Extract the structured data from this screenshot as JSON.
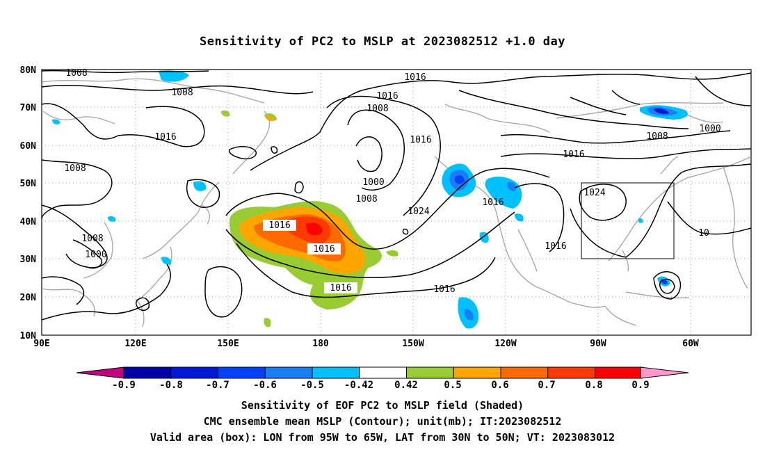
{
  "title": "Sensitivity of PC2 to MSLP at 2023082512 +1.0 day",
  "lat_labels": [
    "80N",
    "70N",
    "60N",
    "50N",
    "40N",
    "30N",
    "20N",
    "10N"
  ],
  "lon_labels": [
    "90E",
    "120E",
    "150E",
    "180",
    "150W",
    "120W",
    "90W",
    "60W"
  ],
  "colorbar": {
    "labels": [
      "-0.9",
      "-0.8",
      "-0.7",
      "-0.6",
      "-0.5",
      "-0.42",
      "0.42",
      "0.5",
      "0.6",
      "0.7",
      "0.8",
      "0.9"
    ],
    "colors": [
      "#c0007f",
      "#0000a8",
      "#0018d8",
      "#0040ff",
      "#1a7df6",
      "#00c0ff",
      "#ffffff",
      "#99cc33",
      "#ffa500",
      "#ff6a00",
      "#ff3a00",
      "#ff0000",
      "#ff99cc"
    ]
  },
  "contour_labels": [
    "1008",
    "1008",
    "1016",
    "1008",
    "1008",
    "1000",
    "1016",
    "1016",
    "1008",
    "1000",
    "1008",
    "1024",
    "1016",
    "1016",
    "1016",
    "1016",
    "1016",
    "1016",
    "1016",
    "1008",
    "1000",
    "1024",
    "1016",
    "10"
  ],
  "footer": {
    "line1": "Sensitivity of EOF PC2 to MSLP field (Shaded)",
    "line2": "CMC ensemble mean MSLP (Contour); unit(mb); IT:2023082512",
    "line3": "Valid area (box): LON from 95W to 65W, LAT from 30N to 50N; VT: 2023083012"
  }
}
